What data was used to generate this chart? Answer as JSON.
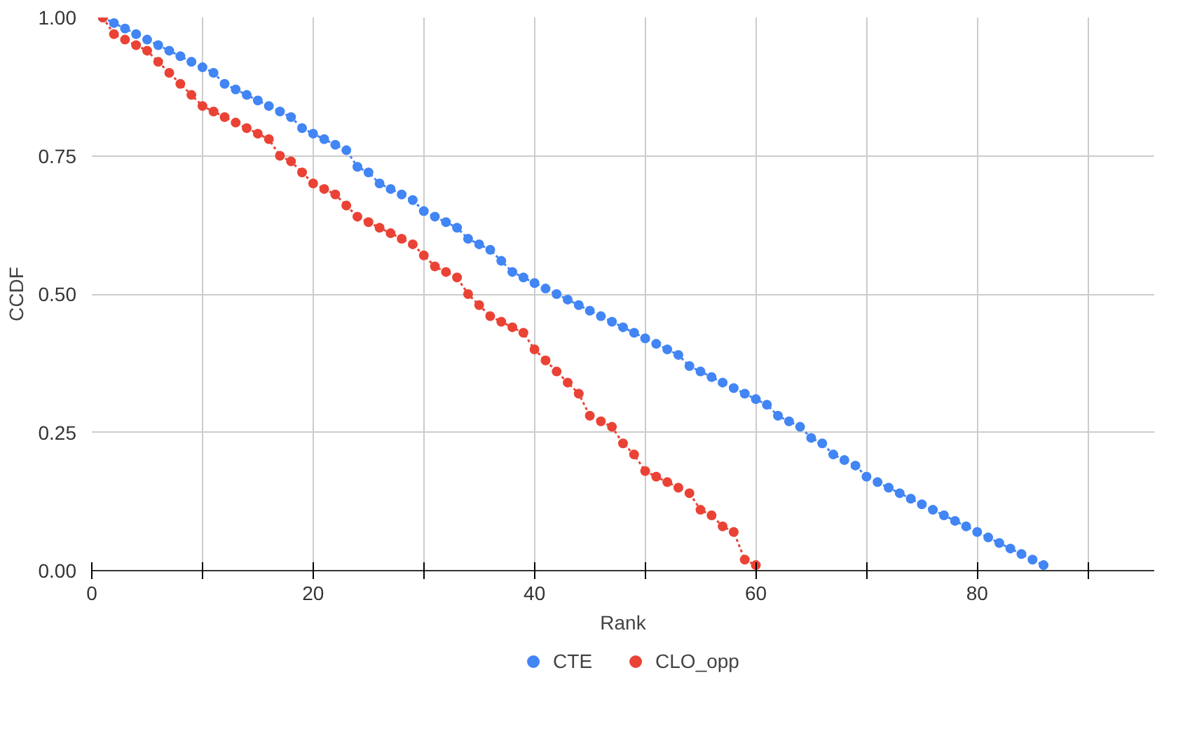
{
  "chart_data": {
    "type": "line",
    "xlabel": "Rank",
    "ylabel": "CCDF",
    "xlim": [
      0,
      96
    ],
    "ylim": [
      0,
      1
    ],
    "xticks": [
      0,
      {
        "value": 10,
        "label": null
      },
      20,
      {
        "value": 30,
        "label": null
      },
      40,
      {
        "value": 50,
        "label": null
      },
      60,
      {
        "value": 70,
        "label": null
      },
      80,
      {
        "value": 90,
        "label": null
      }
    ],
    "yticks": [
      {
        "value": 0,
        "label": "0.00"
      },
      {
        "value": 0.25,
        "label": "0.25"
      },
      {
        "value": 0.5,
        "label": "0.50"
      },
      {
        "value": 0.75,
        "label": "0.75"
      },
      {
        "value": 1,
        "label": "1.00"
      }
    ],
    "grid": true,
    "legend": "bottom",
    "marker": "circle",
    "line_style": "dotted",
    "series": [
      {
        "name": "CTE",
        "color": "#4285f4",
        "x": [
          1,
          2,
          3,
          4,
          5,
          6,
          7,
          8,
          9,
          10,
          11,
          12,
          13,
          14,
          15,
          16,
          17,
          18,
          19,
          20,
          21,
          22,
          23,
          24,
          25,
          26,
          27,
          28,
          29,
          30,
          31,
          32,
          33,
          34,
          35,
          36,
          37,
          38,
          39,
          40,
          41,
          42,
          43,
          44,
          45,
          46,
          47,
          48,
          49,
          50,
          51,
          52,
          53,
          54,
          55,
          56,
          57,
          58,
          59,
          60,
          61,
          62,
          63,
          64,
          65,
          66,
          67,
          68,
          69,
          70,
          71,
          72,
          73,
          74,
          75,
          76,
          77,
          78,
          79,
          80,
          81,
          82,
          83,
          84,
          85,
          86
        ],
        "values": [
          1.0,
          0.99,
          0.98,
          0.97,
          0.96,
          0.95,
          0.94,
          0.93,
          0.92,
          0.91,
          0.9,
          0.88,
          0.87,
          0.86,
          0.85,
          0.84,
          0.83,
          0.82,
          0.8,
          0.79,
          0.78,
          0.77,
          0.76,
          0.73,
          0.72,
          0.7,
          0.69,
          0.68,
          0.67,
          0.65,
          0.64,
          0.63,
          0.62,
          0.6,
          0.59,
          0.58,
          0.56,
          0.54,
          0.53,
          0.52,
          0.51,
          0.5,
          0.49,
          0.48,
          0.47,
          0.46,
          0.45,
          0.44,
          0.43,
          0.42,
          0.41,
          0.4,
          0.39,
          0.37,
          0.36,
          0.35,
          0.34,
          0.33,
          0.32,
          0.31,
          0.3,
          0.28,
          0.27,
          0.26,
          0.24,
          0.23,
          0.21,
          0.2,
          0.19,
          0.17,
          0.16,
          0.15,
          0.14,
          0.13,
          0.12,
          0.11,
          0.1,
          0.09,
          0.08,
          0.07,
          0.06,
          0.05,
          0.04,
          0.03,
          0.02,
          0.01
        ]
      },
      {
        "name": "CLO_opp",
        "color": "#ea4335",
        "x": [
          1,
          2,
          3,
          4,
          5,
          6,
          7,
          8,
          9,
          10,
          11,
          12,
          13,
          14,
          15,
          16,
          17,
          18,
          19,
          20,
          21,
          22,
          23,
          24,
          25,
          26,
          27,
          28,
          29,
          30,
          31,
          32,
          33,
          34,
          35,
          36,
          37,
          38,
          39,
          40,
          41,
          42,
          43,
          44,
          45,
          46,
          47,
          48,
          49,
          50,
          51,
          52,
          53,
          54,
          55,
          56,
          57,
          58,
          59,
          60
        ],
        "values": [
          1.0,
          0.97,
          0.96,
          0.95,
          0.94,
          0.92,
          0.9,
          0.88,
          0.86,
          0.84,
          0.83,
          0.82,
          0.81,
          0.8,
          0.79,
          0.78,
          0.75,
          0.74,
          0.72,
          0.7,
          0.69,
          0.68,
          0.66,
          0.64,
          0.63,
          0.62,
          0.61,
          0.6,
          0.59,
          0.57,
          0.55,
          0.54,
          0.53,
          0.5,
          0.48,
          0.46,
          0.45,
          0.44,
          0.43,
          0.4,
          0.38,
          0.36,
          0.34,
          0.32,
          0.28,
          0.27,
          0.26,
          0.23,
          0.21,
          0.18,
          0.17,
          0.16,
          0.15,
          0.14,
          0.11,
          0.1,
          0.08,
          0.07,
          0.02,
          0.01
        ]
      }
    ]
  }
}
